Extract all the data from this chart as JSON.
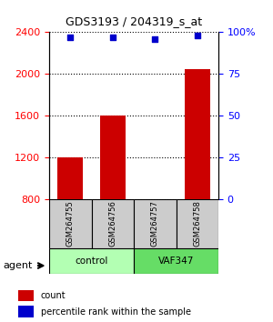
{
  "title": "GDS3193 / 204319_s_at",
  "samples": [
    "GSM264755",
    "GSM264756",
    "GSM264757",
    "GSM264758"
  ],
  "counts": [
    1200,
    1600,
    800,
    2050
  ],
  "percentiles": [
    97,
    97,
    96,
    98
  ],
  "groups": [
    "control",
    "control",
    "VAF347",
    "VAF347"
  ],
  "ylim_left": [
    800,
    2400
  ],
  "ylim_right": [
    0,
    100
  ],
  "yticks_left": [
    800,
    1200,
    1600,
    2000,
    2400
  ],
  "yticks_right": [
    0,
    25,
    50,
    75,
    100
  ],
  "ytick_labels_right": [
    "0",
    "25",
    "50",
    "75",
    "100%"
  ],
  "bar_color": "#cc0000",
  "dot_color": "#0000cc",
  "bar_width": 0.6,
  "grid_color": "#000000",
  "background_color": "#ffffff",
  "sample_box_color": "#cccccc",
  "group_colors": [
    "#99ff99",
    "#66cc66"
  ],
  "control_color": "#b3ffb3",
  "vaf_color": "#66dd66",
  "legend_count_color": "#cc0000",
  "legend_pct_color": "#0000cc",
  "xlabel": "",
  "ylabel_left": "",
  "ylabel_right": ""
}
